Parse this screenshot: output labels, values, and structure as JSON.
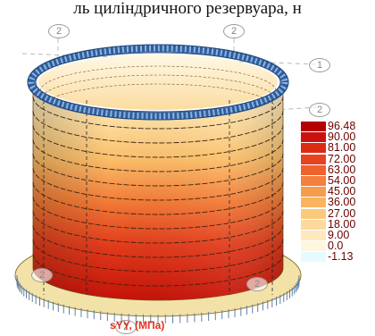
{
  "caption": "ль циліндричного резервуара, н",
  "diagram": {
    "axis_markers": [
      "2",
      "2",
      "1",
      "2",
      "2",
      "2",
      "2"
    ],
    "legend": {
      "unit": "sYY, (МПа)",
      "entries": [
        {
          "value": "96.48",
          "color": "#b50000"
        },
        {
          "value": "90.00",
          "color": "#cc0f0f"
        },
        {
          "value": "81.00",
          "color": "#dd2a14"
        },
        {
          "value": "72.00",
          "color": "#e84321"
        },
        {
          "value": "63.00",
          "color": "#f0612e"
        },
        {
          "value": "54.00",
          "color": "#f57f3c"
        },
        {
          "value": "45.00",
          "color": "#f89c4c"
        },
        {
          "value": "36.00",
          "color": "#fab45f"
        },
        {
          "value": "27.00",
          "color": "#fcc97c"
        },
        {
          "value": "18.00",
          "color": "#fdd99c"
        },
        {
          "value": "9.00",
          "color": "#fee8bd"
        },
        {
          "value": "0.0",
          "color": "#fff6df"
        },
        {
          "value": "-1.13",
          "color": "#e6fbff"
        }
      ]
    }
  }
}
